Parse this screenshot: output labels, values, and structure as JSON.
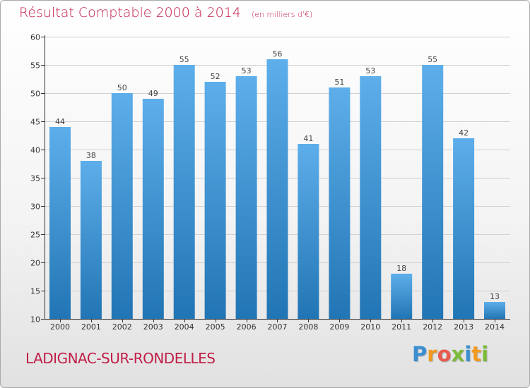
{
  "header": {
    "title": "Résultat Comptable 2000 à 2014",
    "unit": "(en milliers d'€)"
  },
  "footer": {
    "commune": "LADIGNAC-SUR-RONDELLES",
    "logo_letters": [
      "P",
      "r",
      "o",
      "x",
      "i",
      "t",
      "i"
    ],
    "logo_colors": [
      "#3b8fd1",
      "#f29a1f",
      "#e85a4f",
      "#7dbb3a",
      "#3b8fd1",
      "#f29a1f",
      "#7dbb3a"
    ]
  },
  "colors": {
    "title": "#c01e47",
    "bar_top": "#5daeea",
    "bar_bottom": "#2275b4",
    "grid": "#d0d0d0",
    "axis": "#333333"
  },
  "chart_data": {
    "type": "bar",
    "categories": [
      "2000",
      "2001",
      "2002",
      "2003",
      "2004",
      "2005",
      "2006",
      "2007",
      "2008",
      "2009",
      "2010",
      "2011",
      "2012",
      "2013",
      "2014"
    ],
    "values": [
      44,
      38,
      50,
      49,
      55,
      52,
      53,
      56,
      41,
      51,
      53,
      18,
      55,
      42,
      13
    ],
    "ylim": [
      10,
      60
    ],
    "yticks": [
      10,
      15,
      20,
      25,
      30,
      35,
      40,
      45,
      50,
      55,
      60
    ],
    "grid": true,
    "data_labels": true
  }
}
